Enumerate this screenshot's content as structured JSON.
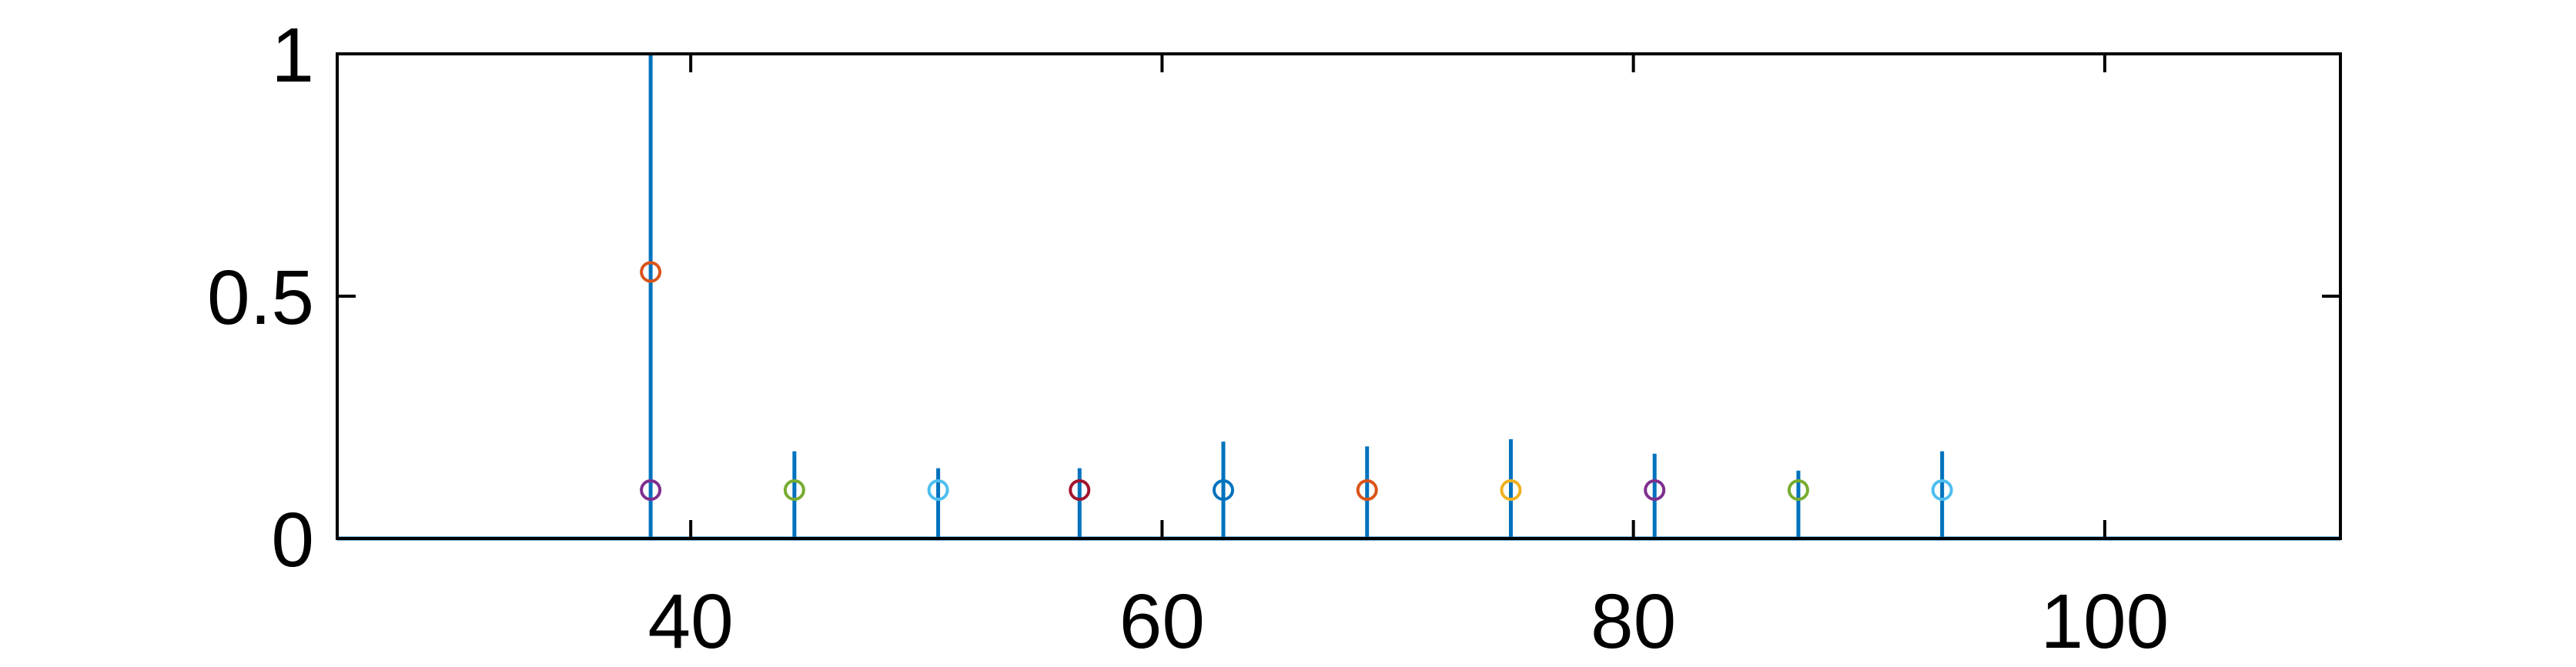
{
  "chart_data": {
    "type": "stem",
    "xlim": [
      25,
      110
    ],
    "ylim": [
      0,
      1
    ],
    "x_ticks": [
      40,
      60,
      80,
      100
    ],
    "y_ticks": [
      0,
      0.5,
      1
    ],
    "x_tick_labels": [
      "40",
      "60",
      "80",
      "100"
    ],
    "y_tick_labels": [
      "0",
      "0.5",
      "1"
    ],
    "grid": false,
    "box": true,
    "baseline": 0,
    "stem_color": "#0072BD",
    "stems": [
      {
        "x": 38.3,
        "y": 1.0
      },
      {
        "x": 44.4,
        "y": 0.18
      },
      {
        "x": 50.5,
        "y": 0.145
      },
      {
        "x": 56.5,
        "y": 0.145
      },
      {
        "x": 62.6,
        "y": 0.2
      },
      {
        "x": 68.7,
        "y": 0.19
      },
      {
        "x": 74.8,
        "y": 0.205
      },
      {
        "x": 80.9,
        "y": 0.175
      },
      {
        "x": 87.0,
        "y": 0.14
      },
      {
        "x": 93.1,
        "y": 0.18
      }
    ],
    "markers": [
      {
        "x": 38.3,
        "y": 0.55,
        "color": "#D95319"
      },
      {
        "x": 38.3,
        "y": 0.1,
        "color": "#7E2F8E"
      },
      {
        "x": 44.4,
        "y": 0.1,
        "color": "#77AC30"
      },
      {
        "x": 50.5,
        "y": 0.1,
        "color": "#4DBEEE"
      },
      {
        "x": 56.5,
        "y": 0.1,
        "color": "#A2142F"
      },
      {
        "x": 62.6,
        "y": 0.1,
        "color": "#0072BD"
      },
      {
        "x": 68.7,
        "y": 0.1,
        "color": "#D95319"
      },
      {
        "x": 74.8,
        "y": 0.1,
        "color": "#EDB120"
      },
      {
        "x": 80.9,
        "y": 0.1,
        "color": "#7E2F8E"
      },
      {
        "x": 87.0,
        "y": 0.1,
        "color": "#77AC30"
      },
      {
        "x": 93.1,
        "y": 0.1,
        "color": "#4DBEEE"
      }
    ]
  }
}
